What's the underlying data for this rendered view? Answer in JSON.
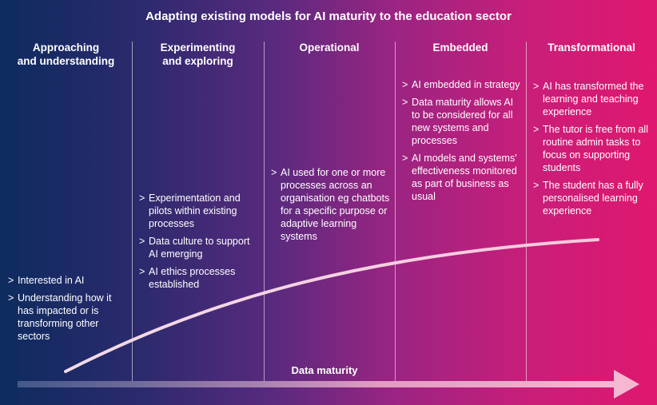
{
  "title": "Adapting existing models for AI maturity to the education sector",
  "axis_label": "Data maturity",
  "colors": {
    "curve": "#f7c8dc",
    "arrow": "#f4b8d2",
    "text": "#ffffff"
  },
  "columns": [
    {
      "heading": "Approaching\nand understanding",
      "bullets": [
        "Interested in AI",
        "Understanding how it has impacted or is transforming other sectors"
      ]
    },
    {
      "heading": "Experimenting\nand exploring",
      "bullets": [
        "Experimentation and pilots within existing processes",
        "Data culture to support AI emerging",
        "AI ethics processes established"
      ]
    },
    {
      "heading": "Operational",
      "bullets": [
        "AI used for one or more processes across an organisation eg chatbots for a specific purpose or adaptive learning systems"
      ]
    },
    {
      "heading": "Embedded",
      "bullets": [
        "AI embedded in strategy",
        "Data maturity allows AI to be considered for all new systems and processes",
        "AI models and systems' effectiveness monitored as part of business as usual"
      ]
    },
    {
      "heading": "Transformational",
      "bullets": [
        "AI has transformed the learning and teaching experience",
        "The tutor is free from all routine admin tasks to focus on supporting students",
        "The student has a fully personalised learning experience"
      ]
    }
  ]
}
